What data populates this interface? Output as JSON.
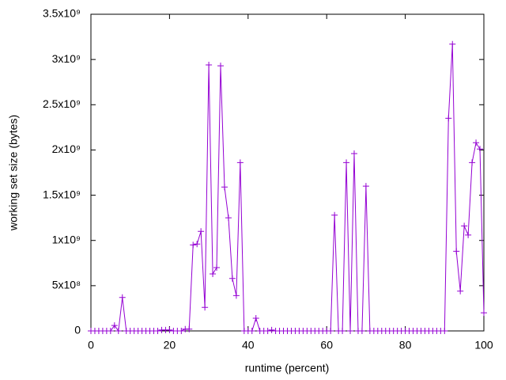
{
  "chart_data": {
    "type": "line",
    "x_label": "runtime (percent)",
    "y_label": "working set size (bytes)",
    "x": [
      0,
      1,
      2,
      3,
      4,
      5,
      6,
      7,
      8,
      9,
      10,
      11,
      12,
      13,
      14,
      15,
      16,
      17,
      18,
      19,
      20,
      21,
      22,
      23,
      24,
      25,
      26,
      27,
      28,
      29,
      30,
      31,
      32,
      33,
      34,
      35,
      36,
      37,
      38,
      39,
      40,
      41,
      42,
      43,
      44,
      45,
      46,
      47,
      48,
      49,
      50,
      51,
      52,
      53,
      54,
      55,
      56,
      57,
      58,
      59,
      60,
      61,
      62,
      63,
      64,
      65,
      66,
      67,
      68,
      69,
      70,
      71,
      72,
      73,
      74,
      75,
      76,
      77,
      78,
      79,
      80,
      81,
      82,
      83,
      84,
      85,
      86,
      87,
      88,
      89,
      90,
      91,
      92,
      93,
      94,
      95,
      96,
      97,
      98,
      99,
      100
    ],
    "series": [
      {
        "color": "#9400d3",
        "values": [
          0,
          0,
          0,
          0,
          0,
          0,
          60000000,
          0,
          370000000,
          0,
          0,
          0,
          0,
          0,
          0,
          0,
          0,
          0,
          10000000,
          10000000,
          10000000,
          0,
          0,
          0,
          20000000,
          20000000,
          950000000,
          960000000,
          1100000000,
          260000000,
          2940000000,
          630000000,
          700000000,
          2930000000,
          1590000000,
          1250000000,
          580000000,
          390000000,
          1860000000,
          0,
          0,
          0,
          140000000,
          0,
          0,
          0,
          10000000,
          0,
          0,
          0,
          0,
          0,
          0,
          0,
          0,
          0,
          0,
          0,
          0,
          0,
          0,
          0,
          1280000000,
          0,
          0,
          1860000000,
          0,
          1960000000,
          0,
          0,
          1600000000,
          0,
          0,
          0,
          0,
          0,
          0,
          0,
          0,
          0,
          0,
          0,
          0,
          0,
          0,
          0,
          0,
          0,
          0,
          0,
          0,
          2350000000,
          3170000000,
          880000000,
          440000000,
          1160000000,
          1060000000,
          1860000000,
          2080000000,
          2010000000,
          200000000
        ]
      }
    ],
    "xlim": [
      0,
      100
    ],
    "xticks": [
      0,
      20,
      40,
      60,
      80,
      100
    ],
    "ylim": [
      0,
      3500000000
    ],
    "yticks": [
      0,
      {
        "value": 500000000,
        "label": "5x10⁸"
      },
      {
        "value": 1000000000,
        "label": "1x10⁹"
      },
      {
        "value": 1500000000,
        "label": "1.5x10⁹"
      },
      {
        "value": 2000000000,
        "label": "2x10⁹"
      },
      {
        "value": 2500000000,
        "label": "2.5x10⁹"
      },
      {
        "value": 3000000000,
        "label": "3x10⁹"
      },
      {
        "value": 3500000000,
        "label": "3.5x10⁹"
      }
    ],
    "grid": false
  }
}
